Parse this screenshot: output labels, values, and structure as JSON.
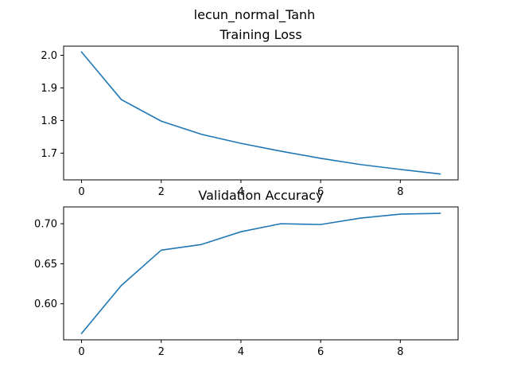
{
  "figure": {
    "suptitle": "lecun_normal_Tanh"
  },
  "colors": {
    "series": "#1f77b4",
    "axes": "#000000",
    "background": "#ffffff"
  },
  "chart_data": [
    {
      "type": "line",
      "title": "Training Loss",
      "xlabel": "",
      "ylabel": "",
      "x": [
        0,
        1,
        2,
        3,
        4,
        5,
        6,
        7,
        8,
        9
      ],
      "series": [
        {
          "values": [
            2.01,
            1.864,
            1.798,
            1.758,
            1.73,
            1.706,
            1.684,
            1.665,
            1.65,
            1.636
          ]
        }
      ],
      "xlim": [
        -0.45,
        9.45
      ],
      "ylim": [
        1.618,
        2.028
      ],
      "xticks": [
        0,
        2,
        4,
        6,
        8
      ],
      "yticks": [
        1.7,
        1.8,
        1.9,
        2.0
      ],
      "ytick_labels": [
        "1.7",
        "1.8",
        "1.9",
        "2.0"
      ],
      "grid": false,
      "legend": "none"
    },
    {
      "type": "line",
      "title": "Validation Accuracy",
      "xlabel": "",
      "ylabel": "",
      "x": [
        0,
        1,
        2,
        3,
        4,
        5,
        6,
        7,
        8,
        9
      ],
      "series": [
        {
          "values": [
            0.563,
            0.623,
            0.667,
            0.674,
            0.69,
            0.7,
            0.699,
            0.707,
            0.712,
            0.713
          ]
        }
      ],
      "xlim": [
        -0.45,
        9.45
      ],
      "ylim": [
        0.555,
        0.721
      ],
      "xticks": [
        0,
        2,
        4,
        6,
        8
      ],
      "yticks": [
        0.6,
        0.65,
        0.7
      ],
      "ytick_labels": [
        "0.60",
        "0.65",
        "0.70"
      ],
      "grid": false,
      "legend": "none"
    }
  ]
}
